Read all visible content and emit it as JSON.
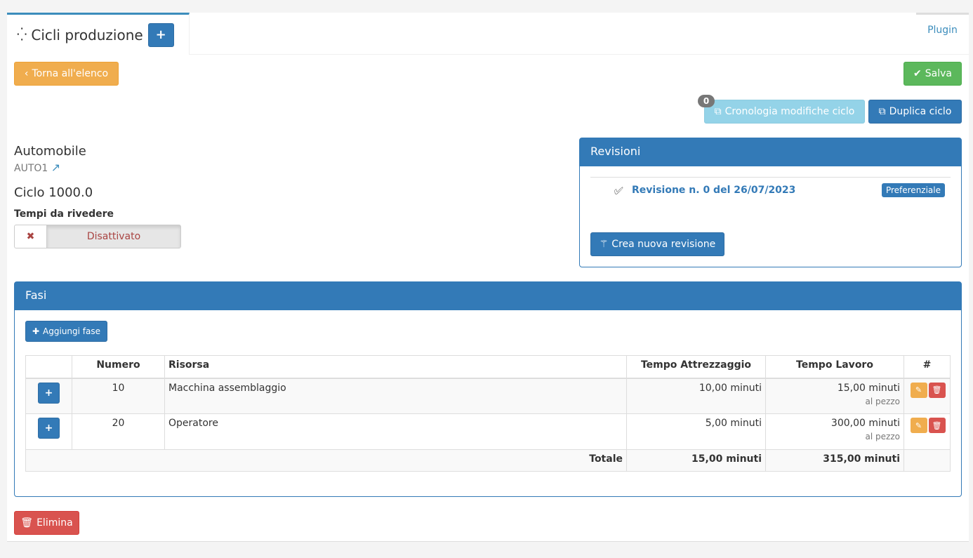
{
  "tabs": {
    "active": "Cicli produzione",
    "plugin": "Plugin"
  },
  "toolbar": {
    "back": "Torna all'elenco",
    "save": "Salva",
    "history": "Cronologia modifiche ciclo",
    "history_badge": "0",
    "duplicate": "Duplica ciclo"
  },
  "article": {
    "name": "Automobile",
    "code": "AUTO1",
    "cycle": "Ciclo 1000.0",
    "review_label": "Tempi da rivedere",
    "review_toggle": "Disattivato"
  },
  "revisions": {
    "title": "Revisioni",
    "items": [
      {
        "label": "Revisione n. 0 del 26/07/2023",
        "badge": "Preferenziale"
      }
    ],
    "new_button": "Crea nuova revisione"
  },
  "phases": {
    "title": "Fasi",
    "add_button": "Aggiungi fase",
    "columns": [
      "",
      "Numero",
      "Risorsa",
      "Tempo Attrezzaggio",
      "Tempo Lavoro",
      "#"
    ],
    "rows": [
      {
        "numero": "10",
        "risorsa": "Macchina assemblaggio",
        "attrezzaggio": "10,00 minuti",
        "lavoro": "15,00 minuti",
        "lavoro_note": "al pezzo"
      },
      {
        "numero": "20",
        "risorsa": "Operatore",
        "attrezzaggio": "5,00 minuti",
        "lavoro": "300,00 minuti",
        "lavoro_note": "al pezzo"
      }
    ],
    "total_label": "Totale",
    "total_attrezzaggio": "15,00 minuti",
    "total_lavoro": "315,00 minuti"
  },
  "delete_button": "Elimina",
  "colors": {
    "primary": "#337ab7",
    "warning": "#f0ad4e",
    "success": "#5cb85c",
    "danger": "#d9534f",
    "info": "#94d3e8"
  }
}
